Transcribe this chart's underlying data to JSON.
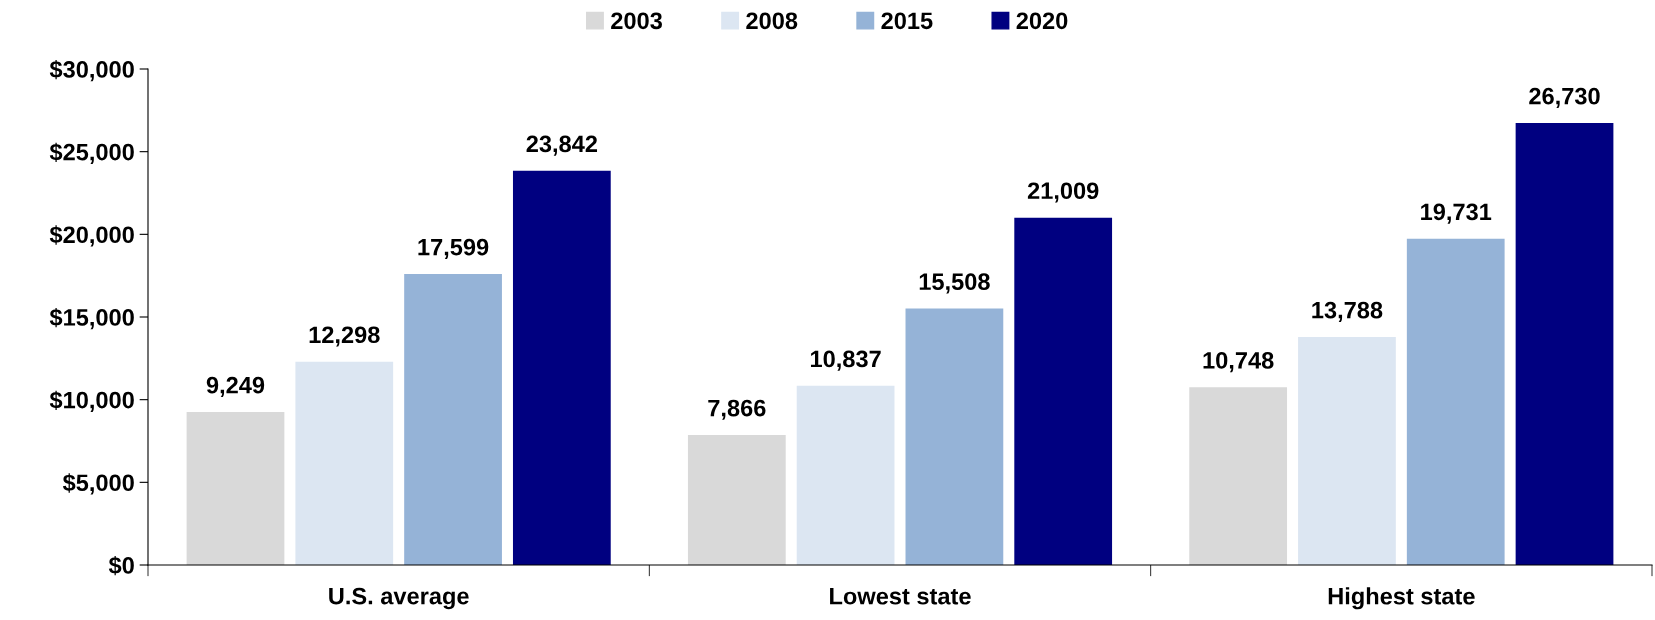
{
  "chart_data": {
    "type": "bar",
    "categories": [
      "U.S. average",
      "Lowest state",
      "Highest state"
    ],
    "series": [
      {
        "name": "2003",
        "color": "#d9d9d9",
        "values": [
          9249,
          7866,
          10748
        ],
        "value_labels": [
          "9,249",
          "7,866",
          "10,748"
        ]
      },
      {
        "name": "2008",
        "color": "#dce6f2",
        "values": [
          12298,
          10837,
          13788
        ],
        "value_labels": [
          "12,298",
          "10,837",
          "13,788"
        ]
      },
      {
        "name": "2015",
        "color": "#95b3d7",
        "values": [
          17599,
          15508,
          19731
        ],
        "value_labels": [
          "17,599",
          "15,508",
          "19,731"
        ]
      },
      {
        "name": "2020",
        "color": "#000080",
        "values": [
          23842,
          21009,
          26730
        ],
        "value_labels": [
          "23,842",
          "21,009",
          "26,730"
        ]
      }
    ],
    "ylim": [
      0,
      30000
    ],
    "yticks": [
      {
        "value": 0,
        "label": "$0"
      },
      {
        "value": 5000,
        "label": "$5,000"
      },
      {
        "value": 10000,
        "label": "$10,000"
      },
      {
        "value": 15000,
        "label": "$15,000"
      },
      {
        "value": 20000,
        "label": "$20,000"
      },
      {
        "value": 25000,
        "label": "$25,000"
      },
      {
        "value": 30000,
        "label": "$30,000"
      }
    ],
    "grid": false,
    "legend": "top"
  }
}
